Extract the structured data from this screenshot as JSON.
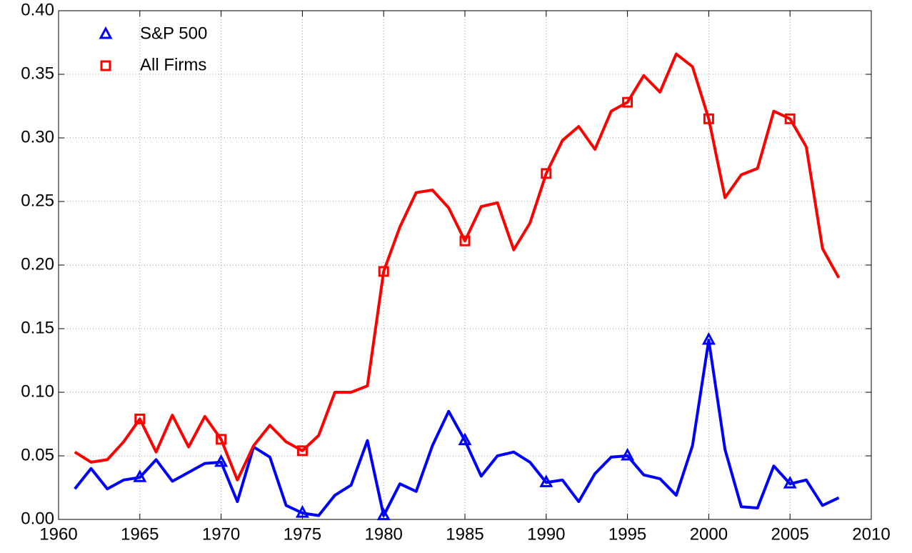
{
  "chart_data": {
    "type": "line",
    "x": [
      1961,
      1962,
      1963,
      1964,
      1965,
      1966,
      1967,
      1968,
      1969,
      1970,
      1971,
      1972,
      1973,
      1974,
      1975,
      1976,
      1977,
      1978,
      1979,
      1980,
      1981,
      1982,
      1983,
      1984,
      1985,
      1986,
      1987,
      1988,
      1989,
      1990,
      1991,
      1992,
      1993,
      1994,
      1995,
      1996,
      1997,
      1998,
      1999,
      2000,
      2001,
      2002,
      2003,
      2004,
      2005,
      2006,
      2007,
      2008
    ],
    "series": [
      {
        "name": "S&P 500",
        "color": "#0000ff",
        "marker": "triangle",
        "values": [
          0.024,
          0.04,
          0.024,
          0.031,
          0.033,
          0.047,
          0.03,
          0.037,
          0.044,
          0.045,
          0.014,
          0.057,
          0.049,
          0.011,
          0.005,
          0.003,
          0.019,
          0.027,
          0.062,
          0.003,
          0.028,
          0.022,
          0.058,
          0.085,
          0.062,
          0.034,
          0.05,
          0.053,
          0.045,
          0.029,
          0.031,
          0.014,
          0.036,
          0.049,
          0.05,
          0.035,
          0.032,
          0.019,
          0.058,
          0.141,
          0.055,
          0.01,
          0.009,
          0.042,
          0.028,
          0.031,
          0.011,
          0.017
        ]
      },
      {
        "name": "All Firms",
        "color": "#ff0000",
        "marker": "square",
        "values": [
          0.053,
          0.045,
          0.047,
          0.061,
          0.079,
          0.053,
          0.082,
          0.057,
          0.081,
          0.063,
          0.031,
          0.058,
          0.074,
          0.061,
          0.054,
          0.066,
          0.1,
          0.1,
          0.105,
          0.195,
          0.23,
          0.257,
          0.259,
          0.245,
          0.219,
          0.246,
          0.249,
          0.212,
          0.233,
          0.272,
          0.298,
          0.309,
          0.291,
          0.321,
          0.328,
          0.349,
          0.336,
          0.366,
          0.356,
          0.315,
          0.253,
          0.271,
          0.276,
          0.321,
          0.315,
          0.293,
          0.213,
          0.19
        ]
      }
    ],
    "xlim": [
      1960,
      2010
    ],
    "xticks": [
      1960,
      1965,
      1970,
      1975,
      1980,
      1985,
      1990,
      1995,
      2000,
      2005,
      2010
    ],
    "ylim": [
      0,
      0.4
    ],
    "yticks": [
      {
        "value": 0,
        "label": "0.00"
      },
      0.05,
      {
        "value": 0.1,
        "label": "0.10"
      },
      0.15,
      {
        "value": 0.2,
        "label": "0.20"
      },
      0.25,
      {
        "value": 0.3,
        "label": "0.30"
      },
      0.35,
      {
        "value": 0.4,
        "label": "0.40"
      }
    ],
    "grid": true,
    "legend": "upper left"
  }
}
